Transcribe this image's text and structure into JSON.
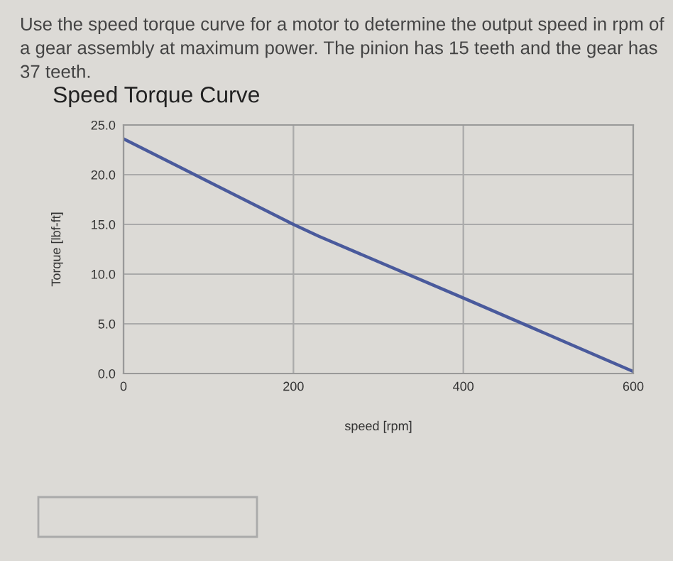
{
  "chart_data": {
    "type": "line",
    "title": "Speed Torque Curve",
    "xlabel": "speed [rpm]",
    "ylabel": "Torque [lbf-ft]",
    "annotations": [
      "Use the speed torque curve for a motor to determine the output speed in rpm of a gear assembly at maximum power. The pinion has 15 teeth and the gear has 37 teeth."
    ],
    "x": [
      0,
      200,
      230,
      400,
      600
    ],
    "series": [
      {
        "color": "#4a5a9c",
        "values": [
          23.6,
          15.0,
          13.8,
          7.6,
          0.2
        ]
      }
    ],
    "xlim": [
      0,
      600
    ],
    "xticks": [
      0,
      200,
      400,
      600
    ],
    "ylim": [
      0,
      25
    ],
    "yticks": [
      {
        "value": 0,
        "label": "0.0"
      },
      {
        "value": 5,
        "label": "5.0"
      },
      {
        "value": 10,
        "label": "10.0"
      },
      {
        "value": 15,
        "label": "15.0"
      },
      {
        "value": 20,
        "label": "20.0"
      },
      {
        "value": 25,
        "label": "25.0"
      }
    ],
    "grid": true,
    "legend": false,
    "marker": "none",
    "line_style": "solid"
  }
}
